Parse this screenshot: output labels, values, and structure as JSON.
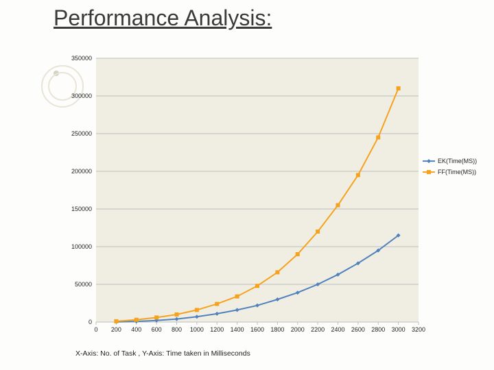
{
  "title": "Performance Analysis:",
  "chart": {
    "type": "line",
    "background_color": "#f0eee2",
    "grid_color": "#bdbdbd",
    "axis_color": "#bdbdbd",
    "tick_font_size": 9,
    "tick_color": "#222222",
    "legend_font_size": 9,
    "xlim": [
      0,
      3200
    ],
    "ylim": [
      0,
      350000
    ],
    "xtick_step": 200,
    "ytick_step": 50000,
    "xticks": [
      0,
      200,
      400,
      600,
      800,
      1000,
      1200,
      1400,
      1600,
      1800,
      2000,
      2200,
      2400,
      2600,
      2800,
      3000,
      3200
    ],
    "yticks": [
      0,
      50000,
      100000,
      150000,
      200000,
      250000,
      300000,
      350000
    ],
    "x_values": [
      200,
      400,
      600,
      800,
      1000,
      1200,
      1400,
      1600,
      1800,
      2000,
      2200,
      2400,
      2600,
      2800,
      3000
    ],
    "series": [
      {
        "name": "EK(Time(MS))",
        "color": "#4f81bd",
        "line_width": 2,
        "marker": "diamond",
        "marker_size": 6,
        "values": [
          200,
          800,
          2000,
          4000,
          7000,
          11000,
          16000,
          22000,
          30000,
          39000,
          50000,
          63000,
          78000,
          95000,
          115000
        ]
      },
      {
        "name": "FF(Time(MS))",
        "color": "#f5a21f",
        "line_width": 2,
        "marker": "square",
        "marker_size": 6,
        "values": [
          1000,
          3000,
          6000,
          10000,
          16000,
          24000,
          34000,
          48000,
          66000,
          90000,
          120000,
          155000,
          195000,
          245000,
          310000
        ]
      }
    ],
    "caption": "X-Axis: No. of Task , Y-Axis: Time taken in Milliseconds"
  }
}
